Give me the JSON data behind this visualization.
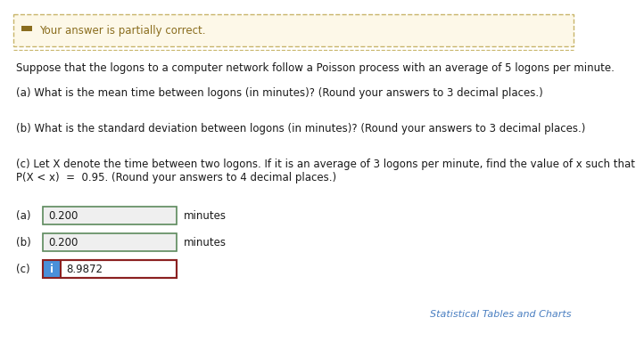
{
  "bg_color": "#ffffff",
  "banner_bg": "#fdf8e8",
  "banner_border": "#c8b56a",
  "banner_text": "Your answer is partially correct.",
  "banner_text_color": "#8a6d1e",
  "body_text_color": "#1a1a1a",
  "question_line1": "Suppose that the logons to a computer network follow a Poisson process with an average of 5 logons per minute.",
  "q_a": "(a) What is the mean time between logons (in minutes)? (Round your answers to 3 decimal places.)",
  "q_b": "(b) What is the standard deviation between logons (in minutes)? (Round your answers to 3 decimal places.)",
  "q_c1": "(c) Let X denote the time between two logons. If it is an average of 3 logons per minute, find the value of x such that",
  "q_c2": "P(X < x)  =  0.95. (Round your answers to 4 decimal places.)",
  "ans_a": "0.200",
  "ans_b": "0.200",
  "ans_c": "8.9872",
  "unit_a": "minutes",
  "unit_b": "minutes",
  "input_box_bg_ab": "#efefef",
  "input_box_border_ab": "#5c8a5c",
  "input_box_border_c": "#8b2020",
  "icon_bg": "#4a90d9",
  "icon_text": "i",
  "icon_text_color": "#ffffff",
  "footer_text": "Statistical Tables and Charts",
  "footer_color": "#4a7fc1",
  "font_size_body": 8.5,
  "font_size_answer": 8.5,
  "font_size_footer": 8.0
}
